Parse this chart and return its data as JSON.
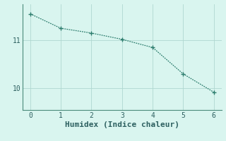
{
  "x": [
    0,
    1,
    2,
    3,
    4,
    5,
    6
  ],
  "y": [
    11.55,
    11.25,
    11.15,
    11.02,
    10.85,
    10.3,
    9.92
  ],
  "line_color": "#2d7d6e",
  "marker": "+",
  "marker_color": "#2d7d6e",
  "background_color": "#d9f5ef",
  "grid_color": "#b0d8d0",
  "axis_color": "#4a8a7a",
  "xlabel": "Humidex (Indice chaleur)",
  "xlabel_fontsize": 8,
  "tick_label_color": "#2d6060",
  "xlim": [
    -0.25,
    6.25
  ],
  "ylim": [
    9.55,
    11.75
  ],
  "yticks": [
    10,
    11
  ],
  "xticks": [
    0,
    1,
    2,
    3,
    4,
    5,
    6
  ]
}
